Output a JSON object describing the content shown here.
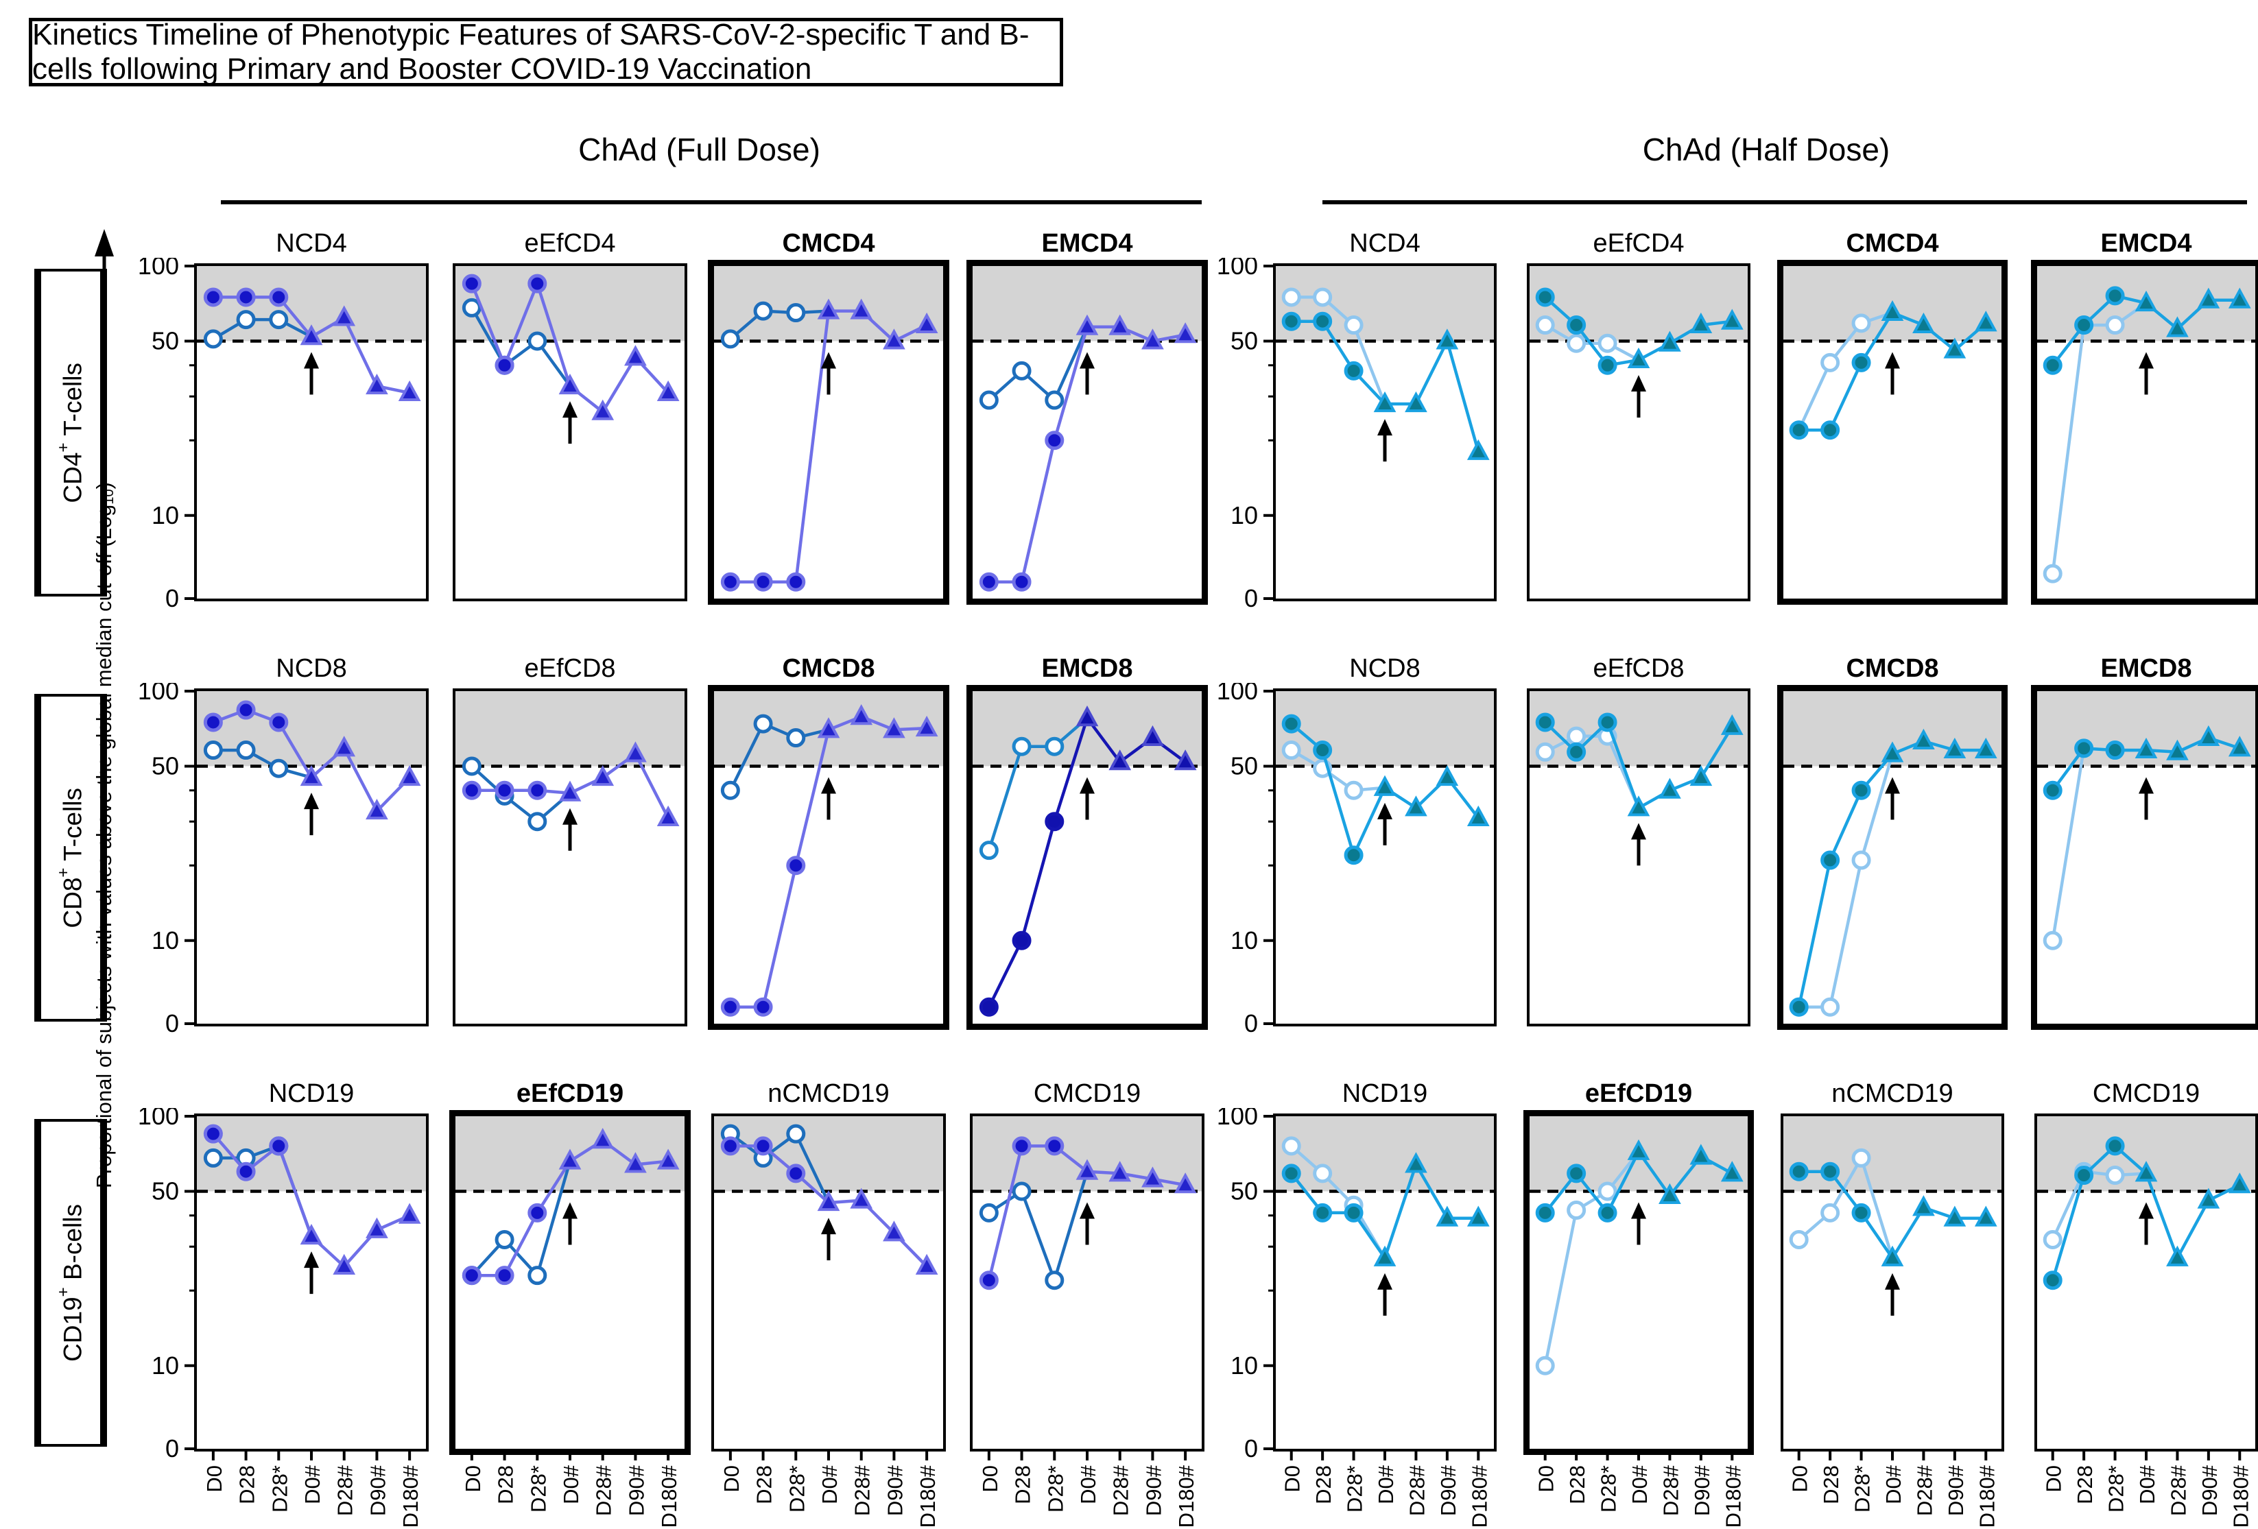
{
  "figure_title": "Kinetics Timeline of Phenotypic Features of SARS-CoV-2-specific T and B-cells following Primary and Booster COVID-19 Vaccination",
  "y_axis_label": {
    "pre": "Proportional of subjects with values above the global median cut-off (Log",
    "sub": "10",
    "post": ")"
  },
  "chart_data": {
    "type": "line",
    "x_categories": [
      "D0",
      "D28",
      "D28*",
      "D0#",
      "D28#",
      "D90#",
      "D180#"
    ],
    "y_ticks": [
      100,
      50,
      10,
      0
    ],
    "y_minor_ticks": [
      40,
      30,
      20
    ],
    "cutoff_value": 50,
    "shaded_band": "above 50 (grey)",
    "booster_arrow_at": "D0#",
    "legend_semantics": {
      "filled_circles": "pre-booster series A (D0, D28, D28*)",
      "open_circles": "pre-booster series B (D0, D28, D28*)",
      "triangles": "post-booster merged series (D0#, D28#, D90#, D180#)"
    },
    "rows": [
      {
        "pre": "CD4",
        "sup": "+",
        "post": " T-cells"
      },
      {
        "pre": "CD8",
        "sup": "+",
        "post": " T-cells"
      },
      {
        "pre": "CD19",
        "sup": "+",
        "post": " B-cells"
      }
    ],
    "groups": [
      {
        "id": "full",
        "label": "ChAd (Full Dose)",
        "colors": {
          "line_filled": "#6F6FE8",
          "fill_filled": "#1414C8",
          "line_open": "#1E6EBC",
          "open_fill": "#FFFFFF",
          "tri_fill": "#2323CC",
          "tri_edge": "#6F6FE8"
        }
      },
      {
        "id": "half",
        "label": "ChAd (Half Dose)",
        "colors": {
          "line_filled": "#19A2E2",
          "fill_filled": "#0A7A90",
          "line_open": "#8FC6EF",
          "open_fill": "#FFFFFF",
          "tri_fill": "#0A7A90",
          "tri_edge": "#19A2E2"
        }
      }
    ],
    "plots": [
      {
        "group": 0,
        "row": 0,
        "col": 0,
        "title": "NCD4",
        "bold": false,
        "filled": [
          75,
          75,
          75
        ],
        "open": [
          51,
          61,
          61
        ],
        "triangles": [
          52,
          62,
          33,
          31
        ]
      },
      {
        "group": 0,
        "row": 0,
        "col": 1,
        "title": "eEfCD4",
        "bold": false,
        "filled": [
          85,
          40,
          85
        ],
        "open": [
          68,
          40,
          50
        ],
        "triangles": [
          33,
          26,
          43,
          31
        ]
      },
      {
        "group": 0,
        "row": 0,
        "col": 2,
        "title": "CMCD4",
        "bold": true,
        "filled": [
          2,
          2,
          2
        ],
        "open": [
          51,
          66,
          65
        ],
        "triangles": [
          66,
          66,
          50,
          58
        ]
      },
      {
        "group": 0,
        "row": 0,
        "col": 3,
        "title": "EMCD4",
        "bold": true,
        "filled": [
          2,
          2,
          20
        ],
        "open": [
          29,
          38,
          29
        ],
        "triangles": [
          57,
          57,
          50,
          53
        ]
      },
      {
        "group": 0,
        "row": 1,
        "col": 0,
        "title": "NCD8",
        "bold": false,
        "filled": [
          75,
          84,
          75
        ],
        "open": [
          58,
          58,
          49
        ],
        "triangles": [
          45,
          59,
          33,
          45
        ]
      },
      {
        "group": 0,
        "row": 1,
        "col": 1,
        "title": "eEfCD8",
        "bold": false,
        "filled": [
          40,
          40,
          40
        ],
        "open": [
          50,
          38,
          30
        ],
        "triangles": [
          39,
          45,
          56,
          31
        ]
      },
      {
        "group": 0,
        "row": 1,
        "col": 2,
        "title": "CMCD8",
        "bold": true,
        "filled": [
          2,
          2,
          20
        ],
        "open": [
          40,
          74,
          65
        ],
        "triangles": [
          70,
          79,
          70,
          71
        ]
      },
      {
        "group": 0,
        "row": 1,
        "col": 3,
        "title": "EMCD8",
        "bold": true,
        "filled": [
          2,
          10,
          30
        ],
        "open": [
          23,
          60,
          60
        ],
        "triangles": [
          78,
          52,
          65,
          52
        ],
        "color_override": {
          "line_filled": "#1515B2",
          "fill_filled": "#1111AE",
          "tri_fill": "#1111AE",
          "tri_edge": "#4A4AD0",
          "line_open": "#1E86CC"
        }
      },
      {
        "group": 0,
        "row": 2,
        "col": 0,
        "title": "NCD19",
        "bold": false,
        "filled": [
          85,
          60,
          76
        ],
        "open": [
          68,
          68,
          76
        ],
        "triangles": [
          33,
          25,
          35,
          40
        ]
      },
      {
        "group": 0,
        "row": 2,
        "col": 1,
        "title": "eEfCD19",
        "bold": true,
        "filled": [
          23,
          23,
          41
        ],
        "open": [
          23,
          32,
          23
        ],
        "triangles": [
          66,
          80,
          64,
          66
        ]
      },
      {
        "group": 0,
        "row": 2,
        "col": 2,
        "title": "nCMCD19",
        "bold": false,
        "filled": [
          76,
          76,
          59
        ],
        "open": [
          85,
          68,
          85
        ],
        "triangles": [
          45,
          46,
          34,
          25
        ]
      },
      {
        "group": 0,
        "row": 2,
        "col": 3,
        "title": "CMCD19",
        "bold": false,
        "filled": [
          22,
          76,
          76
        ],
        "open": [
          41,
          50,
          22
        ],
        "triangles": [
          60,
          59,
          56,
          53
        ]
      },
      {
        "group": 1,
        "row": 0,
        "col": 0,
        "title": "NCD4",
        "bold": false,
        "filled": [
          60,
          60,
          38
        ],
        "open": [
          75,
          75,
          58
        ],
        "triangles": [
          28,
          28,
          50,
          18
        ]
      },
      {
        "group": 1,
        "row": 0,
        "col": 1,
        "title": "eEfCD4",
        "bold": false,
        "filled": [
          75,
          58,
          40
        ],
        "open": [
          58,
          49,
          49
        ],
        "triangles": [
          42,
          49,
          58,
          60
        ]
      },
      {
        "group": 1,
        "row": 0,
        "col": 2,
        "title": "CMCD4",
        "bold": true,
        "filled": [
          22,
          22,
          41
        ],
        "open": [
          22,
          41,
          59
        ],
        "triangles": [
          65,
          58,
          46,
          59
        ]
      },
      {
        "group": 1,
        "row": 0,
        "col": 3,
        "title": "EMCD4",
        "bold": true,
        "filled": [
          40,
          58,
          76
        ],
        "open": [
          3,
          58,
          58
        ],
        "triangles": [
          71,
          56,
          73,
          73
        ]
      },
      {
        "group": 1,
        "row": 1,
        "col": 0,
        "title": "NCD8",
        "bold": false,
        "filled": [
          74,
          58,
          22
        ],
        "open": [
          58,
          49,
          40
        ],
        "triangles": [
          41,
          34,
          45,
          31
        ]
      },
      {
        "group": 1,
        "row": 1,
        "col": 1,
        "title": "eEfCD8",
        "bold": false,
        "filled": [
          75,
          57,
          75
        ],
        "open": [
          57,
          66,
          66
        ],
        "triangles": [
          34,
          40,
          45,
          72
        ]
      },
      {
        "group": 1,
        "row": 1,
        "col": 2,
        "title": "CMCD8",
        "bold": true,
        "filled": [
          2,
          21,
          40
        ],
        "open": [
          2,
          2,
          21
        ],
        "triangles": [
          56,
          63,
          58,
          58
        ]
      },
      {
        "group": 1,
        "row": 1,
        "col": 3,
        "title": "EMCD8",
        "bold": true,
        "filled": [
          40,
          59,
          58
        ],
        "open": [
          10,
          59,
          58
        ],
        "triangles": [
          58,
          57,
          65,
          59
        ]
      },
      {
        "group": 1,
        "row": 2,
        "col": 0,
        "title": "NCD19",
        "bold": false,
        "filled": [
          59,
          41,
          41
        ],
        "open": [
          76,
          59,
          44
        ],
        "triangles": [
          27,
          64,
          39,
          39
        ]
      },
      {
        "group": 1,
        "row": 2,
        "col": 1,
        "title": "eEfCD19",
        "bold": true,
        "filled": [
          41,
          59,
          41
        ],
        "open": [
          10,
          42,
          50
        ],
        "triangles": [
          72,
          48,
          69,
          59
        ]
      },
      {
        "group": 1,
        "row": 2,
        "col": 2,
        "title": "nCMCD19",
        "bold": false,
        "filled": [
          60,
          60,
          41
        ],
        "open": [
          32,
          41,
          68
        ],
        "triangles": [
          27,
          43,
          39,
          39
        ]
      },
      {
        "group": 1,
        "row": 2,
        "col": 3,
        "title": "CMCD19",
        "bold": false,
        "filled": [
          22,
          58,
          76
        ],
        "open": [
          32,
          60,
          58
        ],
        "triangles": [
          59,
          27,
          46,
          53
        ]
      }
    ]
  }
}
